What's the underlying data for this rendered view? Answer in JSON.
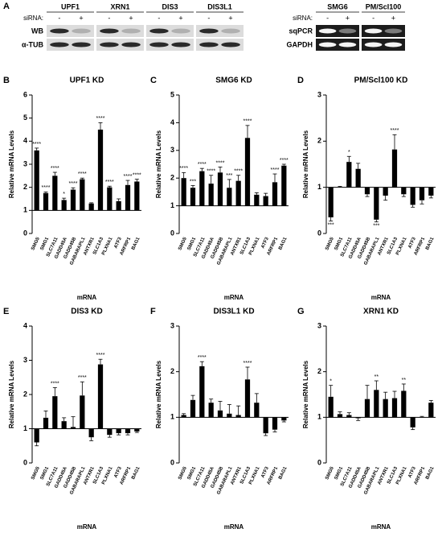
{
  "panel_a": {
    "label": "A",
    "sirna_label": "siRNA:",
    "minus": "-",
    "plus": "+",
    "wb_targets": [
      "UPF1",
      "XRN1",
      "DIS3",
      "DIS3L1"
    ],
    "wb_rows": [
      "WB",
      "α-TUB"
    ],
    "pcr_targets": [
      "SMG6",
      "PM/Scl100"
    ],
    "pcr_rows": [
      "sqPCR",
      "GAPDH"
    ]
  },
  "chart_data": [
    {
      "type": "bar",
      "panel": "B",
      "title": "UPF1 KD",
      "y_label": "Relative mRNA Levels",
      "x_label": "mRNA",
      "color": "#000000",
      "baseline": 1,
      "categories": [
        "SMG5",
        "SMG1",
        "SLC7A11",
        "GADD45A",
        "GADD45B",
        "GABARAPL1",
        "ANTXR1",
        "SLC1A3",
        "PLXNA1",
        "ATF3",
        "ARFRP1",
        "BAG1"
      ],
      "values": [
        3.6,
        1.75,
        2.5,
        1.45,
        1.9,
        2.35,
        1.3,
        4.5,
        2.0,
        1.4,
        2.1,
        2.25
      ],
      "errors": [
        0.1,
        0.05,
        0.15,
        0.08,
        0.08,
        0.05,
        0.03,
        0.3,
        0.05,
        0.1,
        0.2,
        0.1
      ],
      "annotations": [
        "****",
        "****",
        "****",
        "*",
        "****",
        "****",
        null,
        "****",
        "****",
        null,
        "****",
        "****"
      ],
      "ylim": [
        0,
        6
      ],
      "yticks": [
        0,
        1,
        2,
        3,
        4,
        5,
        6
      ]
    },
    {
      "type": "bar",
      "panel": "C",
      "title": "SMG6 KD",
      "y_label": "Relative mRNA Levels",
      "x_label": "mRNA",
      "color": "#000000",
      "baseline": 1,
      "categories": [
        "SMG5",
        "SMG1",
        "SLC7A11",
        "GADD45A",
        "GADD45B",
        "GABARAPL1",
        "ANTXR1",
        "SLC1A3",
        "PLXNA1",
        "ATF3",
        "ARFRP1",
        "BAG1"
      ],
      "values": [
        2.0,
        1.65,
        2.25,
        1.8,
        2.2,
        1.65,
        1.9,
        3.45,
        1.4,
        1.35,
        1.85,
        2.45
      ],
      "errors": [
        0.2,
        0.08,
        0.1,
        0.3,
        0.2,
        0.3,
        0.2,
        0.45,
        0.07,
        0.1,
        0.3,
        0.05
      ],
      "annotations": [
        "****",
        "***",
        "****",
        "****",
        "****",
        "***",
        "****",
        "****",
        null,
        null,
        "****",
        "****"
      ],
      "ylim": [
        0,
        5
      ],
      "yticks": [
        0,
        1,
        2,
        3,
        4,
        5
      ]
    },
    {
      "type": "bar",
      "panel": "D",
      "title": "PM/Scl100 KD",
      "y_label": "Relative mRNA Levels",
      "x_label": "mRNA",
      "color": "#000000",
      "baseline": 1,
      "categories": [
        "SMG5",
        "SMG1",
        "SLC7A11",
        "GADD45A",
        "GADD45B",
        "GABARAPL1",
        "ANTXR1",
        "SLC1A3",
        "PLXNA1",
        "ATF3",
        "ARFRP1",
        "BAG1"
      ],
      "values": [
        0.35,
        1.0,
        1.55,
        1.4,
        0.85,
        0.3,
        0.82,
        1.82,
        0.85,
        0.62,
        0.72,
        0.82
      ],
      "errors": [
        0.08,
        0.02,
        0.12,
        0.12,
        0.05,
        0.05,
        0.1,
        0.32,
        0.05,
        0.05,
        0.08,
        0.05
      ],
      "annotations": [
        "***",
        null,
        "*",
        null,
        null,
        "***",
        null,
        "****",
        null,
        null,
        null,
        null
      ],
      "ylim": [
        0,
        3
      ],
      "yticks": [
        0,
        1,
        2,
        3
      ]
    },
    {
      "type": "bar",
      "panel": "E",
      "title": "DIS3 KD",
      "y_label": "Relative mRNA Levels",
      "x_label": "mRNA",
      "color": "#000000",
      "baseline": 1,
      "categories": [
        "SMG5",
        "SMG1",
        "SLC7A11",
        "GADD45A",
        "GADD45B",
        "GABARAPL1",
        "ANTXR1",
        "SLC1A3",
        "PLXNA1",
        "ATF3",
        "ARFRP1",
        "BAG1"
      ],
      "values": [
        0.6,
        1.32,
        1.95,
        1.22,
        1.05,
        1.97,
        0.75,
        2.88,
        0.82,
        0.87,
        0.87,
        0.92
      ],
      "errors": [
        0.1,
        0.2,
        0.25,
        0.1,
        0.3,
        0.4,
        0.1,
        0.15,
        0.07,
        0.05,
        0.05,
        0.03
      ],
      "annotations": [
        null,
        null,
        "****",
        null,
        null,
        "****",
        null,
        "****",
        null,
        null,
        null,
        null
      ],
      "ylim": [
        0,
        4
      ],
      "yticks": [
        0,
        1,
        2,
        3,
        4
      ]
    },
    {
      "type": "bar",
      "panel": "F",
      "title": "DIS3L1 KD",
      "y_label": "Relative mRNA Levels",
      "x_label": "mRNA",
      "color": "#000000",
      "baseline": 1,
      "categories": [
        "SMG5",
        "SMG1",
        "SLC7A11",
        "GADD45A",
        "GADD45B",
        "GABARAPL1",
        "ANTXR1",
        "SLC1A3",
        "PLXNA1",
        "ATF3",
        "ARFRP1",
        "BAG1"
      ],
      "values": [
        1.05,
        1.38,
        2.12,
        1.32,
        1.15,
        1.08,
        1.05,
        1.83,
        1.32,
        0.65,
        0.73,
        0.93
      ],
      "errors": [
        0.03,
        0.1,
        0.1,
        0.08,
        0.2,
        0.2,
        0.2,
        0.27,
        0.2,
        0.05,
        0.05,
        0.03
      ],
      "annotations": [
        null,
        null,
        "****",
        null,
        null,
        null,
        null,
        "****",
        null,
        null,
        null,
        null
      ],
      "ylim": [
        0,
        3
      ],
      "yticks": [
        0,
        1,
        2,
        3
      ]
    },
    {
      "type": "bar",
      "panel": "G",
      "title": "XRN1 KD",
      "y_label": "Relative mRNA Levels",
      "x_label": "mRNA",
      "color": "#000000",
      "baseline": 1,
      "categories": [
        "SMG5",
        "SMG1",
        "SLC7A11",
        "GADD45A",
        "GADD45B",
        "GABARAPL1",
        "ANTXR1",
        "SLC1A3",
        "PLXNA1",
        "ATF3",
        "ARFRP1",
        "BAG1"
      ],
      "values": [
        1.45,
        1.07,
        1.05,
        0.98,
        1.4,
        1.6,
        1.4,
        1.42,
        1.58,
        0.78,
        1.0,
        1.32
      ],
      "errors": [
        0.25,
        0.05,
        0.05,
        0.05,
        0.3,
        0.2,
        0.15,
        0.15,
        0.15,
        0.05,
        0.02,
        0.05
      ],
      "annotations": [
        "*",
        null,
        null,
        null,
        null,
        "**",
        null,
        null,
        "**",
        null,
        null,
        null
      ],
      "ylim": [
        0,
        3
      ],
      "yticks": [
        0,
        1,
        2,
        3
      ]
    }
  ]
}
